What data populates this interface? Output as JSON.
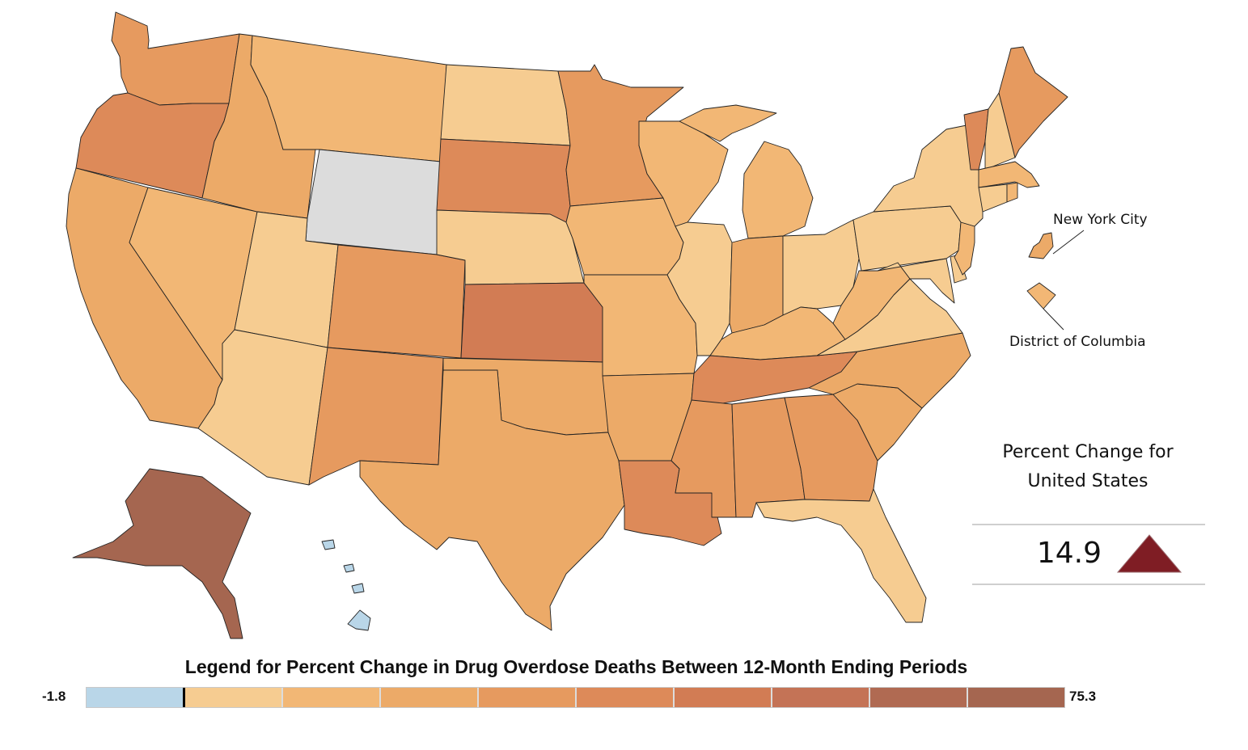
{
  "legend": {
    "title": "Legend for Percent Change in Drug Overdose Deaths Between 12-Month Ending Periods",
    "min_label": "-1.8",
    "max_label": "75.3",
    "bins": [
      "#b9d6e8",
      "#f6cc91",
      "#f2b775",
      "#ecaa68",
      "#e69a5f",
      "#dd8a59",
      "#d27c54",
      "#c47356",
      "#b06a52",
      "#a56650"
    ]
  },
  "summary": {
    "title_line1": "Percent Change for",
    "title_line2": "United States",
    "value": "14.9",
    "trend": "up-triangle-icon",
    "trend_color": "#7f1d24"
  },
  "callouts": {
    "nyc": "New York City",
    "dc": "District of Columbia"
  },
  "states": {
    "WA": "#e69a5f",
    "OR": "#dd8a59",
    "CA": "#ecaa68",
    "NV": "#f2b775",
    "ID": "#ecaa68",
    "MT": "#f2b775",
    "WY": "#dcdcdc",
    "UT": "#f6cc91",
    "AZ": "#f6cc91",
    "CO": "#e69a5f",
    "NM": "#e69a5f",
    "ND": "#f6cc91",
    "SD": "#dd8a59",
    "NE": "#f6cc91",
    "KS": "#d27c54",
    "OK": "#ecaa68",
    "TX": "#ecaa68",
    "MN": "#e69a5f",
    "IA": "#f2b775",
    "MO": "#f2b775",
    "AR": "#ecaa68",
    "LA": "#dd8a59",
    "WI": "#f2b775",
    "IL": "#f6cc91",
    "MI": "#f2b775",
    "IN": "#ecaa68",
    "OH": "#f6cc91",
    "KY": "#f2b775",
    "TN": "#dd8a59",
    "MS": "#e69a5f",
    "AL": "#e69a5f",
    "GA": "#e69a5f",
    "FL": "#f6cc91",
    "SC": "#ecaa68",
    "NC": "#ecaa68",
    "VA": "#f6cc91",
    "WV": "#f2b775",
    "MD": "#f6cc91",
    "DE": "#f6cc91",
    "PA": "#f6cc91",
    "NJ": "#f2b775",
    "NY": "#f6cc91",
    "CT": "#f6cc91",
    "RI": "#f2b775",
    "MA": "#f2b775",
    "VT": "#dd8a59",
    "NH": "#f6cc91",
    "ME": "#e69a5f",
    "AK": "#a56650",
    "HI": "#b9d6e8",
    "NYC": "#ecaa68",
    "DC": "#f2b775"
  }
}
